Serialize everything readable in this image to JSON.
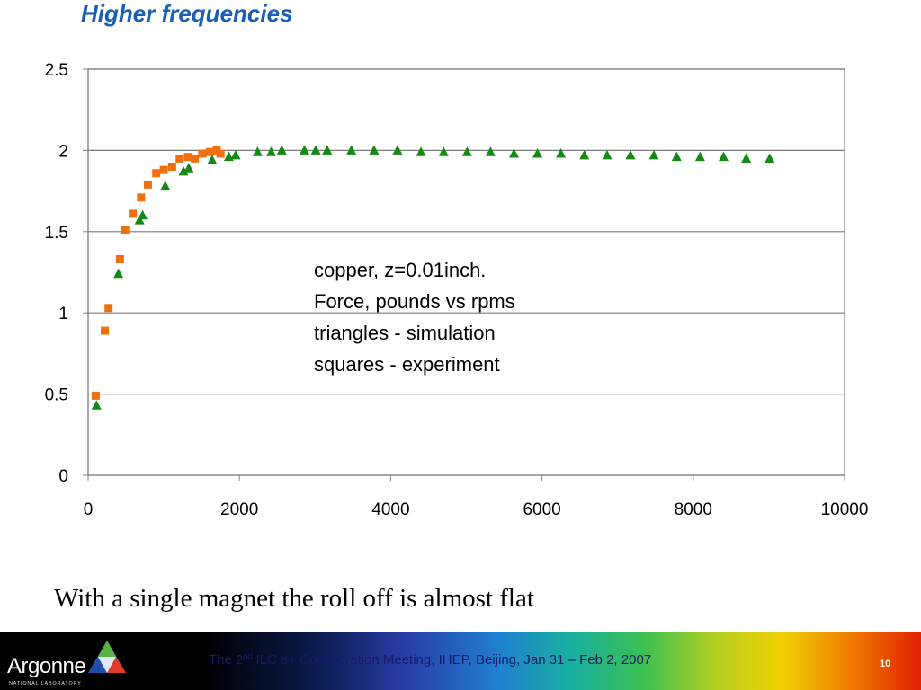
{
  "slide": {
    "title": "Higher frequencies",
    "caption": "With a single magnet the roll off is almost flat",
    "annotation_lines": [
      "copper, z=0.01inch.",
      "Force, pounds vs rpms",
      "triangles - simulation",
      "squares - experiment"
    ]
  },
  "footer": {
    "logo_text": "Argonne",
    "logo_subtext": "NATIONAL LABORATORY",
    "meeting_prefix": "The 2",
    "meeting_sup": "nd",
    "meeting_suffix": " ILC e+ Collaboration Meeting, IHEP, Beijing, Jan 31 – Feb 2, 2007",
    "page_number": "10"
  },
  "colors": {
    "title": "#1a5fb4",
    "experiment": "#f07010",
    "simulation": "#138a13",
    "grid": "#808080"
  },
  "chart_data": {
    "type": "scatter",
    "xlim": [
      0,
      10000
    ],
    "ylim": [
      0,
      2.5
    ],
    "xticks": [
      0,
      2000,
      4000,
      6000,
      8000,
      10000
    ],
    "yticks": [
      0,
      0.5,
      1,
      1.5,
      2,
      2.5
    ],
    "xtick_labels": [
      "0",
      "2000",
      "4000",
      "6000",
      "8000",
      "10000"
    ],
    "ytick_labels": [
      "0",
      "0.5",
      "1",
      "1.5",
      "2",
      "2.5"
    ],
    "grid": "horizontal",
    "series": [
      {
        "marker": "square",
        "color": "#f07010",
        "points": [
          [
            100,
            0.49
          ],
          [
            220,
            0.89
          ],
          [
            270,
            1.03
          ],
          [
            420,
            1.33
          ],
          [
            490,
            1.51
          ],
          [
            590,
            1.61
          ],
          [
            700,
            1.71
          ],
          [
            790,
            1.79
          ],
          [
            900,
            1.86
          ],
          [
            1000,
            1.88
          ],
          [
            1110,
            1.9
          ],
          [
            1210,
            1.95
          ],
          [
            1320,
            1.96
          ],
          [
            1410,
            1.95
          ],
          [
            1510,
            1.98
          ],
          [
            1610,
            1.99
          ],
          [
            1700,
            2.0
          ],
          [
            1750,
            1.98
          ]
        ]
      },
      {
        "marker": "triangle",
        "color": "#138a13",
        "points": [
          [
            110,
            0.43
          ],
          [
            400,
            1.24
          ],
          [
            680,
            1.57
          ],
          [
            720,
            1.6
          ],
          [
            1020,
            1.78
          ],
          [
            1260,
            1.87
          ],
          [
            1330,
            1.89
          ],
          [
            1640,
            1.94
          ],
          [
            1860,
            1.96
          ],
          [
            1950,
            1.97
          ],
          [
            2240,
            1.99
          ],
          [
            2420,
            1.99
          ],
          [
            2560,
            2.0
          ],
          [
            2860,
            2.0
          ],
          [
            3010,
            2.0
          ],
          [
            3160,
            2.0
          ],
          [
            3480,
            2.0
          ],
          [
            3780,
            2.0
          ],
          [
            4090,
            2.0
          ],
          [
            4400,
            1.99
          ],
          [
            4700,
            1.99
          ],
          [
            5010,
            1.99
          ],
          [
            5320,
            1.99
          ],
          [
            5630,
            1.98
          ],
          [
            5940,
            1.98
          ],
          [
            6250,
            1.98
          ],
          [
            6560,
            1.97
          ],
          [
            6860,
            1.97
          ],
          [
            7170,
            1.97
          ],
          [
            7480,
            1.97
          ],
          [
            7780,
            1.96
          ],
          [
            8090,
            1.96
          ],
          [
            8400,
            1.96
          ],
          [
            8700,
            1.95
          ],
          [
            9010,
            1.95
          ]
        ]
      }
    ]
  }
}
